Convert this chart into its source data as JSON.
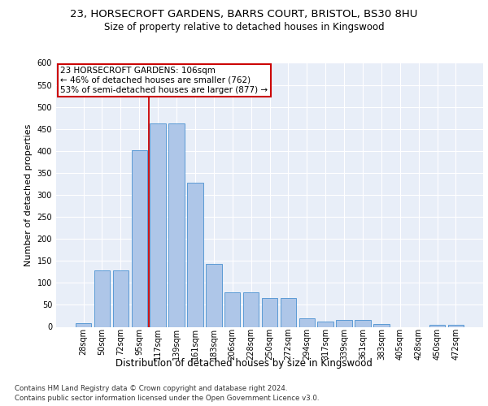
{
  "title_line1": "23, HORSECROFT GARDENS, BARRS COURT, BRISTOL, BS30 8HU",
  "title_line2": "Size of property relative to detached houses in Kingswood",
  "xlabel": "Distribution of detached houses by size in Kingswood",
  "ylabel": "Number of detached properties",
  "footer_line1": "Contains HM Land Registry data © Crown copyright and database right 2024.",
  "footer_line2": "Contains public sector information licensed under the Open Government Licence v3.0.",
  "annotation_line1": "23 HORSECROFT GARDENS: 106sqm",
  "annotation_line2": "← 46% of detached houses are smaller (762)",
  "annotation_line3": "53% of semi-detached houses are larger (877) →",
  "bar_heights": [
    9,
    128,
    128,
    401,
    463,
    463,
    328,
    143,
    79,
    79,
    65,
    65,
    20,
    12,
    15,
    15,
    7,
    0,
    0,
    4,
    5
  ],
  "categories": [
    "28sqm",
    "50sqm",
    "72sqm",
    "95sqm",
    "117sqm",
    "139sqm",
    "161sqm",
    "183sqm",
    "206sqm",
    "228sqm",
    "250sqm",
    "272sqm",
    "294sqm",
    "317sqm",
    "339sqm",
    "361sqm",
    "383sqm",
    "405sqm",
    "428sqm",
    "450sqm",
    "472sqm"
  ],
  "bar_color": "#aec6e8",
  "bar_edge_color": "#5b9bd5",
  "ylim": [
    0,
    600
  ],
  "yticks": [
    0,
    50,
    100,
    150,
    200,
    250,
    300,
    350,
    400,
    450,
    500,
    550,
    600
  ],
  "bg_color": "#e8eef8",
  "grid_color": "#ffffff",
  "annotation_box_color": "#ffffff",
  "annotation_box_edge": "#cc0000",
  "red_line_color": "#cc0000",
  "title1_fontsize": 9.5,
  "title2_fontsize": 8.5,
  "ylabel_fontsize": 8,
  "xlabel_fontsize": 8.5,
  "tick_fontsize": 7,
  "footer_fontsize": 6.2,
  "ann_fontsize": 7.5
}
